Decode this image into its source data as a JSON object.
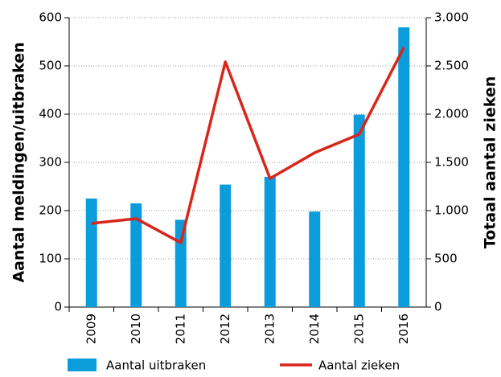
{
  "chart_data": {
    "type": "bar_line",
    "categories": [
      "2009",
      "2010",
      "2011",
      "2012",
      "2013",
      "2014",
      "2015",
      "2016"
    ],
    "series": [
      {
        "name": "Aantal uitbraken",
        "type": "bar",
        "color": "#0b9ddb",
        "axis": "y",
        "values": [
          225,
          215,
          181,
          254,
          270,
          198,
          399,
          580
        ]
      },
      {
        "name": "Aantal zieken",
        "type": "line",
        "color": "#d9261c",
        "axis": "y2",
        "values": [
          867,
          917,
          667,
          2542,
          1333,
          1600,
          1792,
          2692
        ]
      }
    ],
    "ylabel": "Aantal meldingen/uitbraken",
    "y2label": "Totaal aantal zieken",
    "ylim": [
      0,
      600
    ],
    "yticks": [
      0,
      100,
      200,
      300,
      400,
      500,
      600
    ],
    "y2lim": [
      0,
      3000
    ],
    "y2ticks": [
      0,
      500,
      {
        "value": 1000,
        "label": "1.000"
      },
      {
        "value": 1500,
        "label": "1.500"
      },
      {
        "value": 2000,
        "label": "2.000"
      },
      {
        "value": 2500,
        "label": "2.500"
      },
      {
        "value": 3000,
        "label": "3.000"
      }
    ],
    "grid": true,
    "legend": "bottom"
  }
}
